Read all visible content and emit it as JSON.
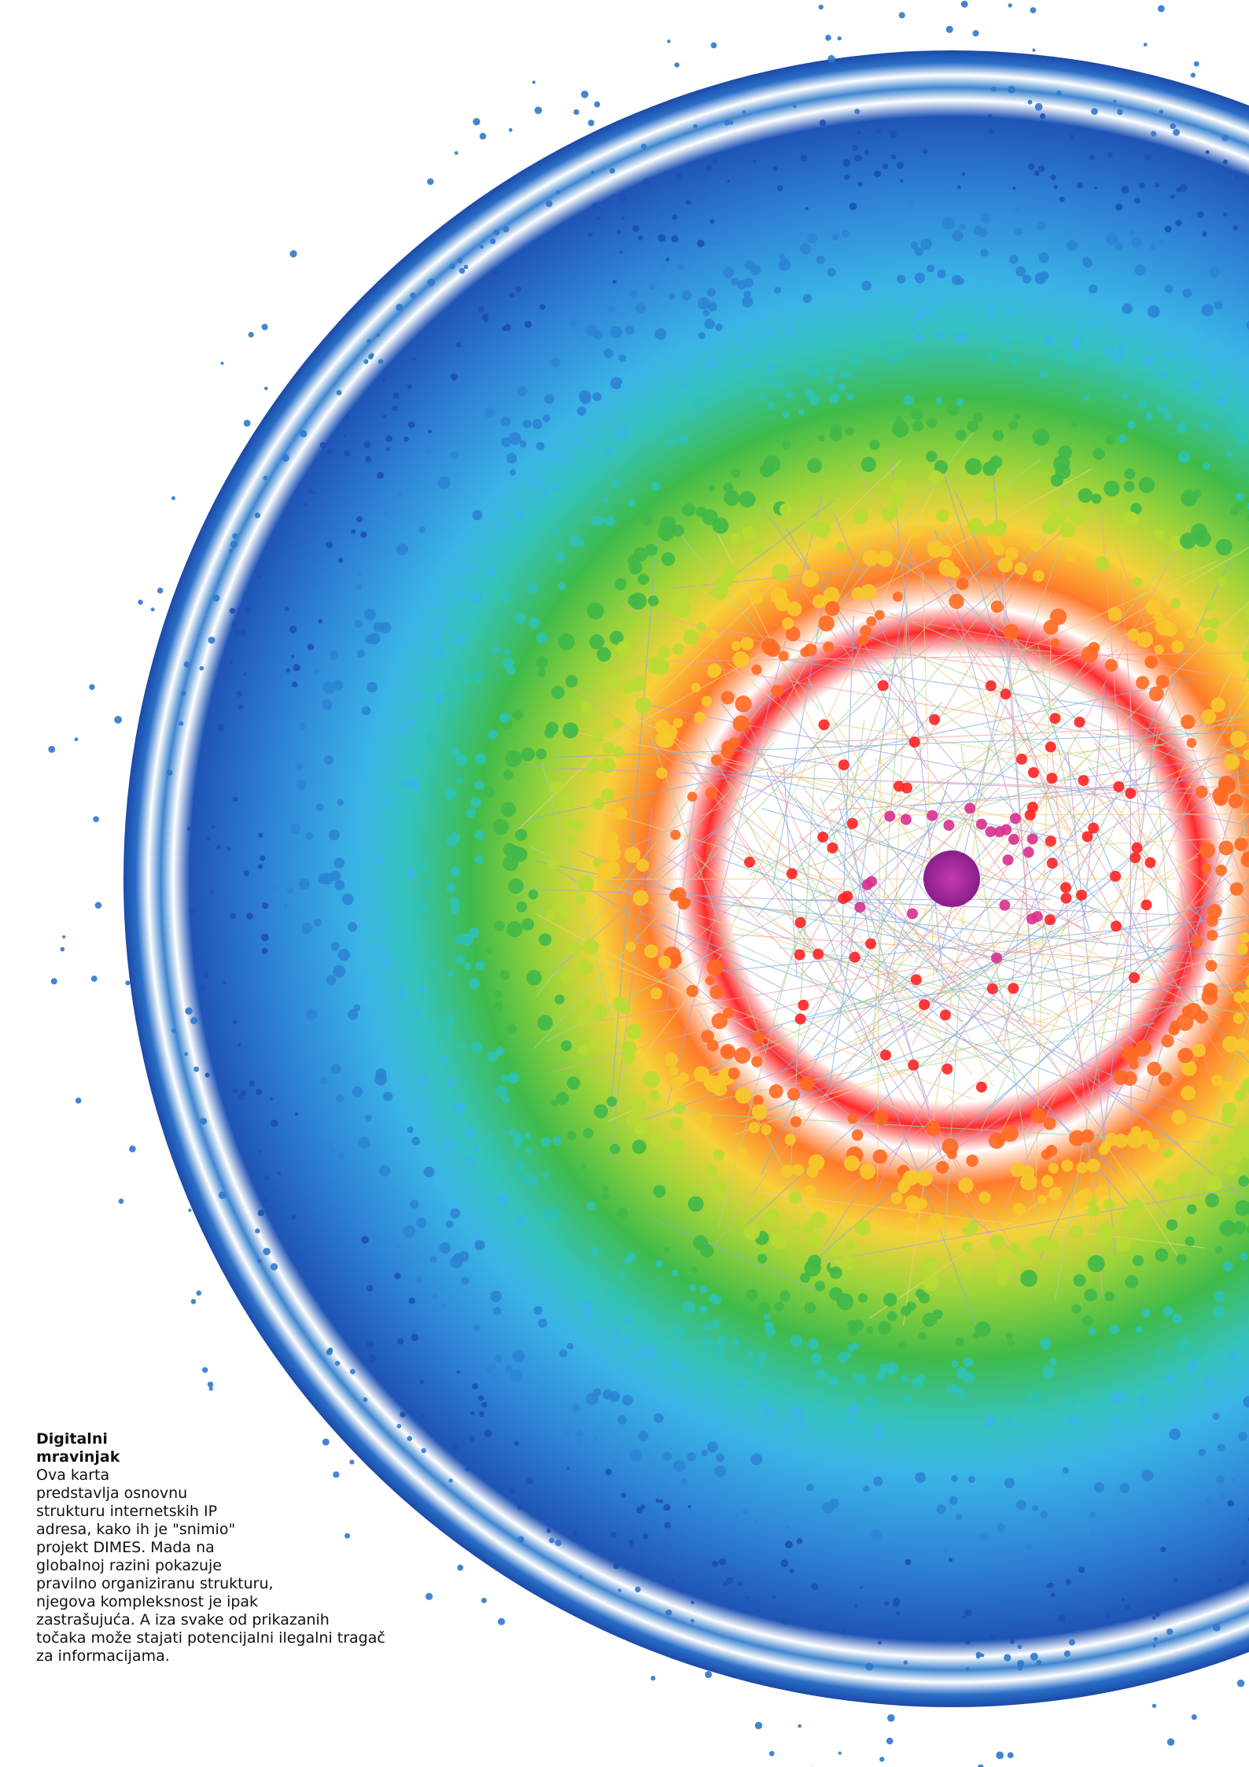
{
  "caption": {
    "title": "Digitalni mravinjak",
    "body_lines": [
      "Ova karta",
      "predstavlja osnovnu",
      "strukturu internetskih IP",
      "adresa, kako ih je \"snimio\"",
      "projekt DIMES. Mada na",
      "globalnoj razini pokazuje",
      "pravilno organiziranu strukturu,",
      "njegova kompleksnost je ipak",
      "zastrašujuća. A iza svake od prikazanih",
      "točaka može stajati potencijalni ilegalni tragač",
      "za informacijama."
    ]
  }
}
